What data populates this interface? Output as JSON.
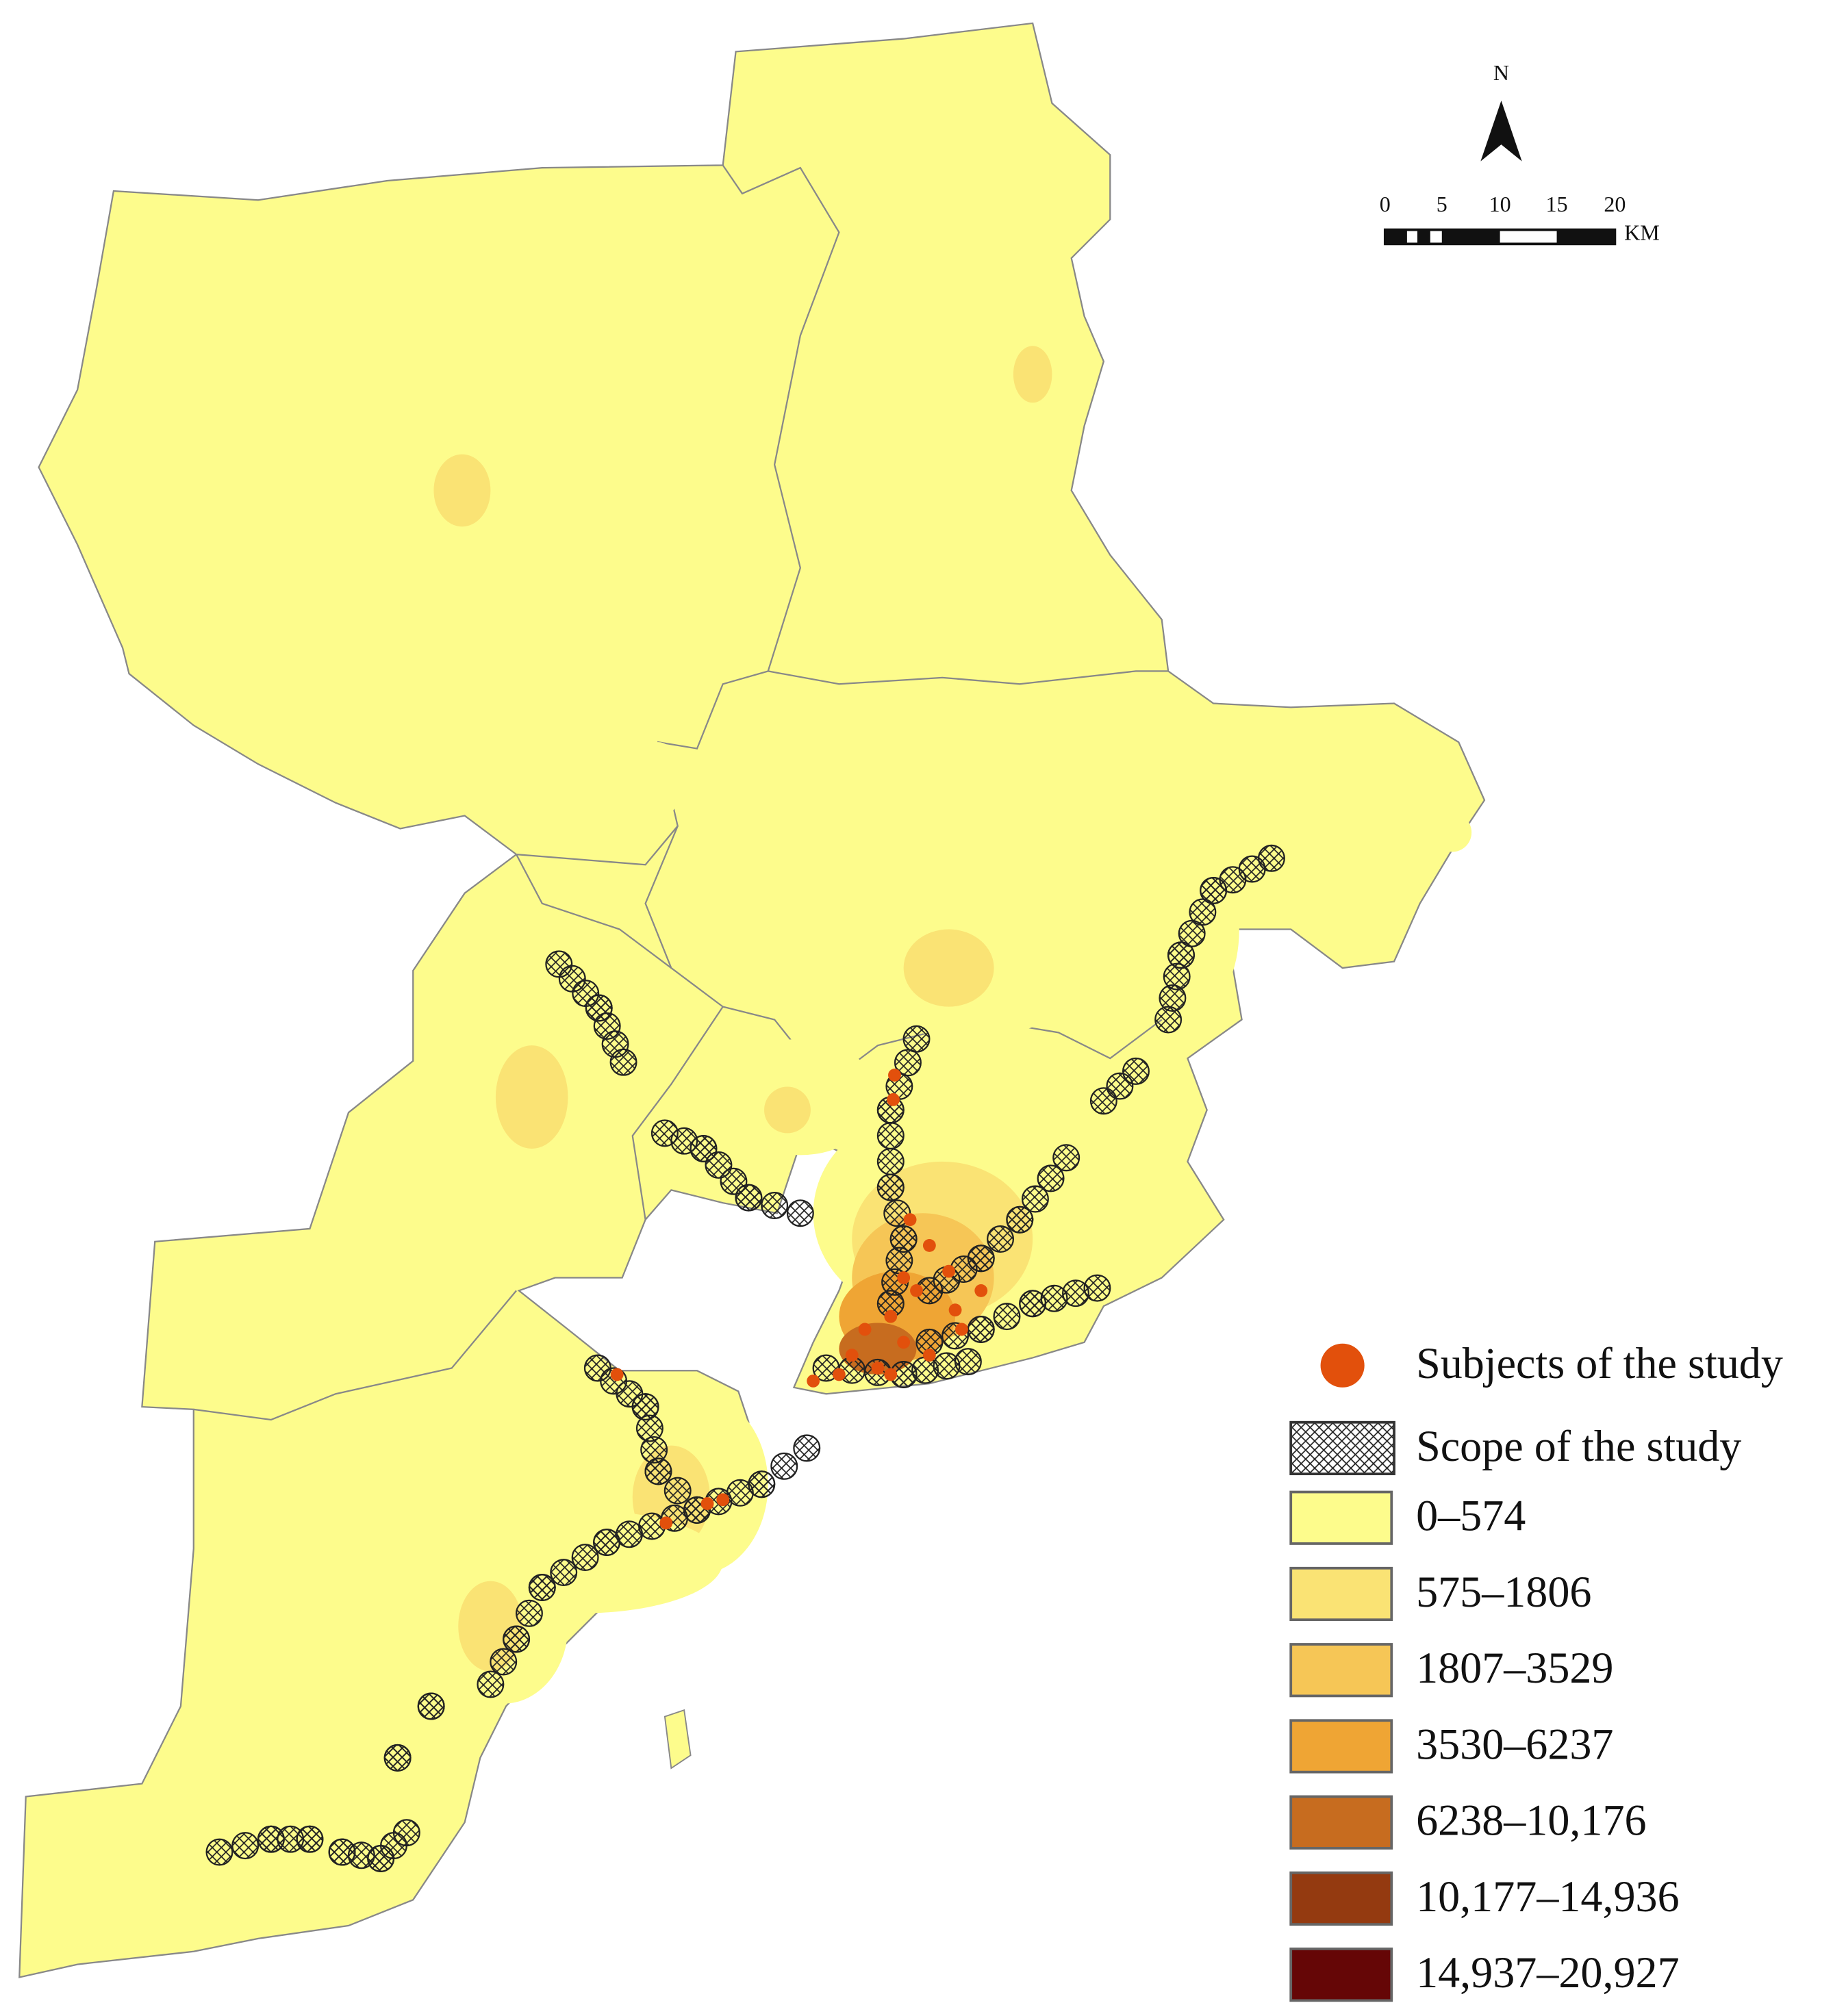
{
  "north": "N",
  "scale_bar": {
    "ticks": [
      "0",
      "5",
      "10",
      "15",
      "20"
    ],
    "unit": "KM"
  },
  "legend": [
    {
      "label": "Subjects of the study",
      "symbol": "dot",
      "color": "#e2500c"
    },
    {
      "label": "Scope of the study",
      "symbol": "hatch"
    },
    {
      "label": "0–574",
      "color": "#fdfc8c"
    },
    {
      "label": "575–1806",
      "color": "#fae374"
    },
    {
      "label": "1807–3529",
      "color": "#f6c656"
    },
    {
      "label": "3530–6237",
      "color": "#efa534"
    },
    {
      "label": "6238–10,176",
      "color": "#c76c1f"
    },
    {
      "label": "10,177–14,936",
      "color": "#943a10"
    },
    {
      "label": "14,937–20,927",
      "color": "#650606"
    }
  ]
}
